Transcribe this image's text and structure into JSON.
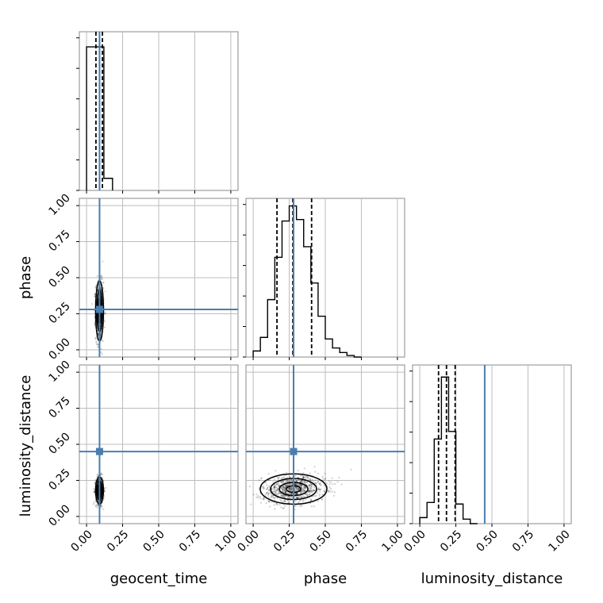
{
  "chart_data": {
    "type": "corner",
    "parameters": [
      "geocent_time",
      "phase",
      "luminosity_distance"
    ],
    "tick_values": [
      0.0,
      0.25,
      0.5,
      0.75,
      1.0
    ],
    "tick_labels": [
      "0.00",
      "0.25",
      "0.50",
      "0.75",
      "1.00"
    ],
    "range": [
      -0.05,
      1.05
    ],
    "grid": true,
    "truths": {
      "geocent_time": 0.09,
      "phase": 0.28,
      "luminosity_distance": 0.45
    },
    "histograms": {
      "geocent_time": {
        "bins": [
          0.0,
          0.06,
          0.12,
          0.18
        ],
        "counts": [
          0.95,
          0.95,
          0.08
        ],
        "quantiles": [
          0.065,
          0.09,
          0.11
        ]
      },
      "phase": {
        "bins": [
          0.0,
          0.05,
          0.1,
          0.15,
          0.2,
          0.25,
          0.3,
          0.35,
          0.4,
          0.45,
          0.5,
          0.55,
          0.6,
          0.65,
          0.7,
          0.75
        ],
        "counts": [
          0.04,
          0.13,
          0.38,
          0.66,
          0.9,
          1.0,
          0.91,
          0.73,
          0.49,
          0.27,
          0.12,
          0.06,
          0.03,
          0.01,
          0.0
        ],
        "quantiles": [
          0.165,
          0.275,
          0.405
        ]
      },
      "luminosity_distance": {
        "bins": [
          0.0,
          0.05,
          0.1,
          0.15,
          0.2,
          0.25,
          0.3,
          0.35,
          0.4
        ],
        "counts": [
          0.04,
          0.14,
          0.56,
          0.97,
          0.61,
          0.13,
          0.03,
          0.0
        ],
        "quantiles": [
          0.13,
          0.185,
          0.245
        ]
      }
    },
    "pairs": [
      {
        "x": "geocent_time",
        "y": "phase",
        "mean": [
          0.09,
          0.27
        ],
        "sd": [
          0.013,
          0.1
        ],
        "rho": 0.0
      },
      {
        "x": "geocent_time",
        "y": "luminosity_distance",
        "mean": [
          0.09,
          0.18
        ],
        "sd": [
          0.013,
          0.045
        ],
        "rho": 0.0
      },
      {
        "x": "phase",
        "y": "luminosity_distance",
        "mean": [
          0.28,
          0.19
        ],
        "sd": [
          0.11,
          0.05
        ],
        "rho": 0.15
      }
    ]
  }
}
